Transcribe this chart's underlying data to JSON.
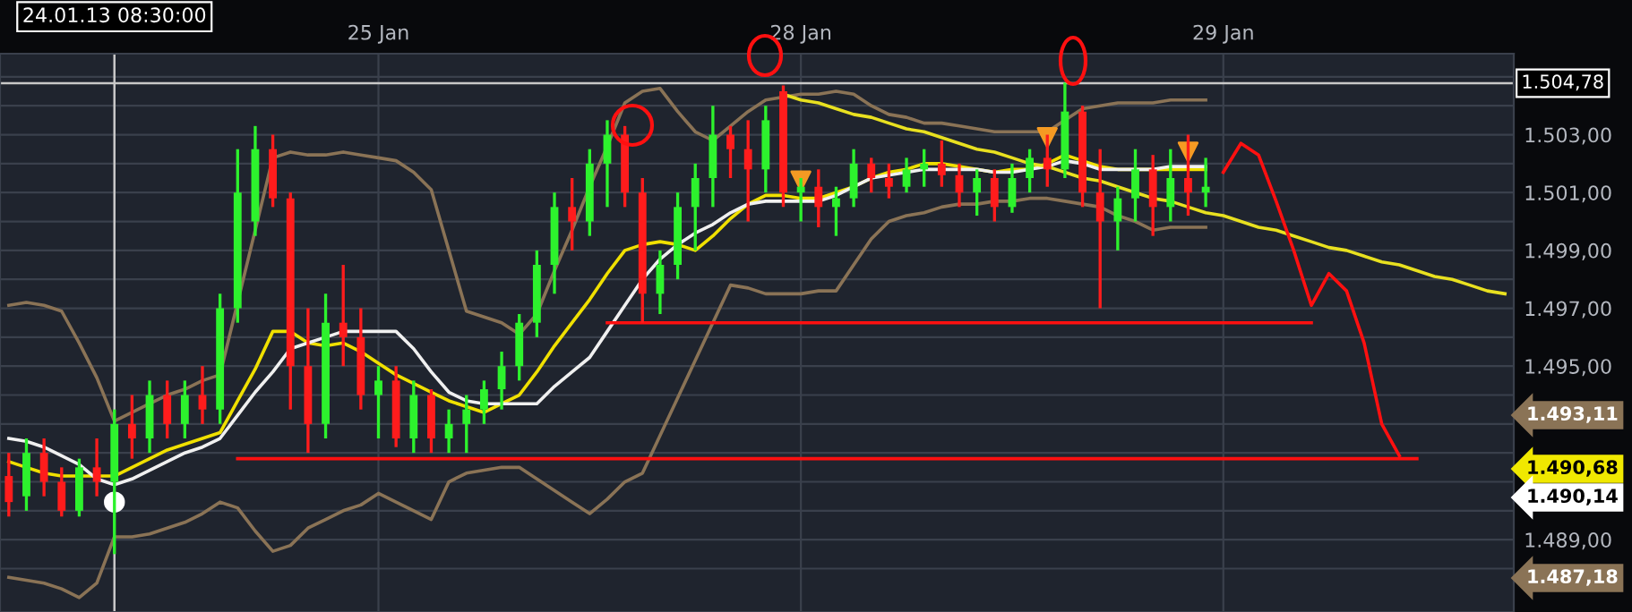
{
  "chart_data": {
    "type": "candlestick",
    "categories": [
      null,
      null,
      null,
      null,
      null,
      null,
      null,
      null,
      null,
      null,
      null,
      null,
      null,
      null,
      null,
      null,
      null,
      null,
      null,
      null,
      null,
      "25 Jan",
      null,
      null,
      null,
      null,
      null,
      null,
      null,
      null,
      null,
      null,
      null,
      null,
      null,
      null,
      null,
      null,
      null,
      null,
      null,
      null,
      null,
      null,
      null,
      "28 Jan",
      null,
      null,
      null,
      null,
      null,
      null,
      null,
      null,
      null,
      null,
      null,
      null,
      null,
      null,
      null,
      null,
      null,
      null,
      null,
      null,
      null,
      null,
      null,
      "29 Jan",
      null,
      null,
      null,
      null,
      null,
      null,
      null,
      null,
      null,
      null,
      null,
      null,
      null,
      null,
      null,
      null
    ],
    "ohlc": [
      [
        1491.2,
        1492.0,
        1489.8,
        1490.3
      ],
      [
        1490.5,
        1492.5,
        1490.0,
        1492.0
      ],
      [
        1492.0,
        1492.5,
        1490.5,
        1491.0
      ],
      [
        1491.0,
        1491.5,
        1489.8,
        1490.0
      ],
      [
        1490.0,
        1491.8,
        1489.8,
        1491.5
      ],
      [
        1491.5,
        1492.5,
        1490.5,
        1491.0
      ],
      [
        1491.0,
        1493.5,
        1488.5,
        1493.0
      ],
      [
        1493.0,
        1494.0,
        1491.8,
        1492.5
      ],
      [
        1492.5,
        1494.5,
        1492.0,
        1494.0
      ],
      [
        1494.0,
        1494.5,
        1492.5,
        1493.0
      ],
      [
        1493.0,
        1494.5,
        1492.5,
        1494.0
      ],
      [
        1494.0,
        1495.0,
        1493.0,
        1493.5
      ],
      [
        1493.5,
        1497.5,
        1493.0,
        1497.0
      ],
      [
        1497.0,
        1502.5,
        1496.5,
        1501.0
      ],
      [
        1500.0,
        1503.3,
        1499.5,
        1502.5
      ],
      [
        1502.5,
        1503.0,
        1500.5,
        1500.8
      ],
      [
        1500.8,
        1501.0,
        1493.5,
        1495.0
      ],
      [
        1495.0,
        1497.0,
        1492.0,
        1493.0
      ],
      [
        1493.0,
        1497.5,
        1492.5,
        1496.5
      ],
      [
        1496.5,
        1498.5,
        1495.0,
        1496.0
      ],
      [
        1496.0,
        1497.0,
        1493.5,
        1494.0
      ],
      [
        1494.0,
        1495.0,
        1492.5,
        1494.5
      ],
      [
        1494.5,
        1495.0,
        1492.2,
        1492.5
      ],
      [
        1492.5,
        1494.5,
        1492.0,
        1494.0
      ],
      [
        1494.0,
        1494.2,
        1492.0,
        1492.5
      ],
      [
        1492.5,
        1493.5,
        1492.0,
        1493.0
      ],
      [
        1493.0,
        1494.0,
        1492.0,
        1493.5
      ],
      [
        1493.5,
        1494.5,
        1493.0,
        1494.2
      ],
      [
        1494.2,
        1495.5,
        1493.5,
        1495.0
      ],
      [
        1495.0,
        1496.8,
        1494.5,
        1496.5
      ],
      [
        1496.5,
        1499.0,
        1496.0,
        1498.5
      ],
      [
        1498.5,
        1501.0,
        1497.5,
        1500.5
      ],
      [
        1500.5,
        1501.5,
        1499.0,
        1500.0
      ],
      [
        1500.0,
        1502.5,
        1499.5,
        1502.0
      ],
      [
        1502.0,
        1503.5,
        1500.5,
        1503.0
      ],
      [
        1503.0,
        1503.3,
        1500.5,
        1501.0
      ],
      [
        1501.0,
        1501.5,
        1496.5,
        1497.5
      ],
      [
        1497.5,
        1499.0,
        1496.8,
        1498.5
      ],
      [
        1498.5,
        1501.0,
        1498.0,
        1500.5
      ],
      [
        1500.5,
        1502.0,
        1499.0,
        1501.5
      ],
      [
        1501.5,
        1504.0,
        1500.5,
        1503.0
      ],
      [
        1503.0,
        1503.3,
        1501.5,
        1502.5
      ],
      [
        1502.5,
        1503.5,
        1500.0,
        1501.8
      ],
      [
        1501.8,
        1504.0,
        1501.0,
        1503.5
      ],
      [
        1504.5,
        1504.7,
        1500.5,
        1501.0
      ],
      [
        1501.0,
        1501.5,
        1500.0,
        1501.2
      ],
      [
        1501.2,
        1501.8,
        1499.8,
        1500.5
      ],
      [
        1500.5,
        1501.2,
        1499.5,
        1500.8
      ],
      [
        1500.8,
        1502.5,
        1500.5,
        1502.0
      ],
      [
        1502.0,
        1502.2,
        1501.0,
        1501.5
      ],
      [
        1501.5,
        1502.0,
        1500.8,
        1501.2
      ],
      [
        1501.2,
        1502.2,
        1501.0,
        1501.8
      ],
      [
        1501.8,
        1502.5,
        1501.2,
        1502.0
      ],
      [
        1502.0,
        1502.8,
        1501.2,
        1501.6
      ],
      [
        1501.6,
        1502.0,
        1500.5,
        1501.0
      ],
      [
        1501.0,
        1501.8,
        1500.2,
        1501.5
      ],
      [
        1501.5,
        1501.8,
        1500.0,
        1500.5
      ],
      [
        1500.5,
        1502.0,
        1500.3,
        1501.5
      ],
      [
        1501.5,
        1502.5,
        1501.0,
        1502.2
      ],
      [
        1502.2,
        1503.0,
        1501.2,
        1501.8
      ],
      [
        1501.8,
        1504.8,
        1501.5,
        1503.8
      ],
      [
        1503.8,
        1504.0,
        1500.5,
        1501.0
      ],
      [
        1501.0,
        1502.5,
        1497.0,
        1500.0
      ],
      [
        1500.0,
        1501.2,
        1499.0,
        1500.8
      ],
      [
        1500.8,
        1502.5,
        1500.0,
        1501.8
      ],
      [
        1501.8,
        1502.3,
        1499.5,
        1500.5
      ],
      [
        1500.5,
        1502.5,
        1500.0,
        1501.5
      ],
      [
        1501.5,
        1503.0,
        1500.2,
        1501.0
      ],
      [
        1501.0,
        1502.2,
        1500.5,
        1501.2
      ],
      null,
      null,
      null,
      null,
      null,
      null,
      null,
      null,
      null,
      null,
      null,
      null,
      null,
      null,
      null,
      null,
      null
    ],
    "series": [
      {
        "type": "line",
        "color": "#8a7356",
        "values": [
          1497.1,
          1497.2,
          1497.1,
          1496.9,
          1495.8,
          1494.6,
          1493.1,
          1493.4,
          1493.7,
          1494.0,
          1494.2,
          1494.5,
          1494.7,
          null,
          null,
          1502.2,
          1502.4,
          1502.3,
          1502.3,
          1502.4,
          1502.3,
          1502.2,
          1502.1,
          1501.7,
          1501.1,
          1499.0,
          1496.9,
          1496.7,
          1496.5,
          1496.1,
          1496.8,
          1498.3,
          1499.7,
          1501.2,
          1502.6,
          1504.1,
          1504.5,
          1504.6,
          1503.8,
          1503.1,
          1502.8,
          1503.3,
          1503.8,
          1504.2,
          1504.3,
          1504.4,
          1504.4,
          1504.5,
          1504.4,
          1504.0,
          1503.7,
          1503.6,
          1503.4,
          1503.4,
          1503.3,
          1503.2,
          1503.1,
          1503.1,
          1503.1,
          1503.1,
          1503.5,
          1503.9,
          1504.0,
          1504.1,
          1504.1,
          1504.1,
          1504.2,
          1504.2,
          1504.2,
          null,
          null,
          null,
          null,
          null,
          null,
          null,
          null,
          null,
          null,
          null,
          null,
          null,
          null,
          null,
          null,
          null
        ]
      },
      {
        "type": "line",
        "color": "#8a7356",
        "values": [
          1487.7,
          1487.6,
          1487.5,
          1487.3,
          1487.0,
          1487.5,
          1489.1,
          1489.1,
          1489.2,
          1489.4,
          1489.6,
          1489.9,
          1490.3,
          1490.1,
          1489.3,
          1488.6,
          1488.8,
          1489.4,
          1489.7,
          1490.0,
          1490.2,
          1490.6,
          1490.3,
          1490.0,
          1489.7,
          1491.0,
          1491.3,
          1491.4,
          1491.5,
          1491.5,
          1491.1,
          1490.7,
          1490.3,
          1489.9,
          1490.4,
          1491.0,
          1491.3,
          1492.6,
          1493.9,
          1495.2,
          1496.5,
          1497.8,
          1497.7,
          1497.5,
          1497.5,
          1497.5,
          1497.6,
          1497.6,
          1498.5,
          1499.4,
          1500.0,
          1500.2,
          1500.3,
          1500.5,
          1500.6,
          1500.6,
          1500.7,
          1500.7,
          1500.8,
          1500.8,
          1500.7,
          1500.6,
          1500.5,
          1500.2,
          1500.0,
          1499.7,
          1499.8,
          1499.8,
          1499.8,
          null,
          null,
          null,
          null,
          null,
          null,
          null,
          null,
          null,
          null,
          null,
          null,
          null,
          null,
          null,
          null,
          null
        ]
      },
      {
        "type": "line",
        "color": "#f0e000",
        "values": [
          1491.7,
          1491.5,
          1491.3,
          1491.2,
          1491.2,
          1491.2,
          1491.2,
          1491.5,
          1491.8,
          1492.1,
          1492.3,
          1492.5,
          1492.7,
          1493.8,
          1494.9,
          1496.2,
          1496.2,
          1495.8,
          1495.7,
          1495.8,
          1495.5,
          1495.1,
          1494.7,
          1494.4,
          1494.1,
          1493.8,
          1493.6,
          1493.4,
          1493.7,
          1494.0,
          1494.8,
          1495.7,
          1496.5,
          1497.3,
          1498.2,
          1499.0,
          1499.2,
          1499.3,
          1499.2,
          1499.0,
          1499.5,
          1500.1,
          1500.6,
          1500.9,
          1500.9,
          1500.8,
          1500.8,
          1501.0,
          1501.2,
          1501.5,
          1501.7,
          1501.8,
          1502.0,
          1502.0,
          1501.9,
          1501.8,
          1501.7,
          1501.8,
          1501.8,
          1502.0,
          1502.3,
          1502.1,
          1501.9,
          1501.8,
          null,
          1501.8,
          1501.8,
          1501.8,
          1501.8,
          null,
          null,
          null,
          null,
          null,
          null,
          null,
          null,
          null,
          null,
          null,
          null,
          null,
          null,
          null,
          null,
          null
        ]
      },
      {
        "type": "line",
        "color": "#f0f0f0",
        "values": [
          1492.5,
          1492.4,
          1492.2,
          1491.9,
          1491.6,
          1491.1,
          1490.9,
          1491.1,
          1491.4,
          1491.7,
          1492.0,
          1492.2,
          1492.5,
          1493.3,
          1494.1,
          1494.8,
          1495.6,
          1495.8,
          1496.0,
          1496.2,
          1496.2,
          1496.2,
          1496.2,
          1495.6,
          1494.8,
          1494.1,
          1493.8,
          1493.7,
          1493.7,
          1493.7,
          1493.7,
          1494.3,
          1494.8,
          1495.3,
          1496.2,
          1497.1,
          1498.0,
          1498.7,
          1499.2,
          1499.6,
          1499.9,
          1500.3,
          1500.6,
          1500.7,
          1500.7,
          1500.7,
          1500.7,
          1500.9,
          1501.2,
          1501.5,
          1501.6,
          1501.7,
          1501.8,
          1501.8,
          1501.8,
          1501.8,
          1501.7,
          1501.7,
          1501.8,
          1501.9,
          1502.1,
          1502.0,
          1501.8,
          1501.8,
          1501.8,
          1501.8,
          1501.9,
          1501.9,
          1501.9,
          null,
          null,
          null,
          null,
          null,
          null,
          null,
          null,
          null,
          null,
          null,
          null,
          null,
          null,
          null,
          null,
          null
        ]
      },
      {
        "type": "line",
        "color": "#e8e020",
        "values": [
          null,
          null,
          null,
          null,
          null,
          null,
          null,
          null,
          null,
          null,
          null,
          null,
          null,
          null,
          null,
          null,
          null,
          null,
          null,
          null,
          null,
          null,
          null,
          null,
          null,
          null,
          null,
          null,
          null,
          null,
          null,
          null,
          null,
          null,
          null,
          null,
          null,
          null,
          null,
          null,
          null,
          null,
          null,
          null,
          1504.4,
          1504.2,
          1504.1,
          1503.9,
          1503.7,
          1503.6,
          1503.4,
          1503.2,
          1503.1,
          1502.9,
          1502.7,
          1502.5,
          1502.4,
          1502.2,
          1502.0,
          1501.9,
          1501.7,
          1501.5,
          1501.4,
          1501.2,
          1501.0,
          1500.8,
          1500.7,
          1500.5,
          1500.3,
          1500.2,
          1500.0,
          1499.8,
          1499.7,
          1499.5,
          1499.3,
          1499.1,
          1499.0,
          1498.8,
          1498.6,
          1498.5,
          1498.3,
          1498.1,
          1498.0,
          1497.8,
          1497.6,
          1497.5
        ]
      },
      {
        "type": "line",
        "color": "#ff1010",
        "values": [
          null,
          null,
          null,
          null,
          null,
          null,
          null,
          null,
          null,
          null,
          null,
          null,
          null,
          null,
          null,
          null,
          null,
          null,
          null,
          null,
          null,
          null,
          null,
          null,
          null,
          null,
          null,
          null,
          null,
          null,
          null,
          null,
          null,
          null,
          1496.5,
          1496.5,
          1496.5,
          1496.5,
          1496.5,
          1496.5,
          1496.5,
          1496.5,
          1496.5,
          1496.5,
          1496.5,
          1496.5,
          1496.5,
          1496.5,
          1496.5,
          1496.5,
          1496.5,
          1496.5,
          1496.5,
          1496.5,
          1496.5,
          1496.5,
          1496.5,
          1496.5,
          1496.5,
          1496.5,
          1496.5,
          1496.5,
          1496.5,
          1496.5,
          1496.5,
          1496.5,
          1496.5,
          1496.5,
          1496.5,
          1496.5,
          1496.5,
          1496.5,
          1496.5,
          1496.5,
          1496.5,
          null,
          null,
          null,
          null,
          null,
          null,
          null,
          null,
          null,
          null,
          null
        ]
      },
      {
        "type": "line",
        "color": "#ff1010",
        "values": [
          null,
          null,
          null,
          null,
          null,
          null,
          null,
          null,
          null,
          null,
          null,
          null,
          null,
          1491.8,
          1491.8,
          1491.8,
          1491.8,
          1491.8,
          1491.8,
          1491.8,
          1491.8,
          1491.8,
          1491.8,
          1491.8,
          1491.8,
          1491.8,
          1491.8,
          1491.8,
          1491.8,
          1491.8,
          1491.8,
          1491.8,
          1491.8,
          1491.8,
          1491.8,
          1491.8,
          1491.8,
          1491.8,
          1491.8,
          1491.8,
          1491.8,
          1491.8,
          1491.8,
          1491.8,
          1491.8,
          1491.8,
          1491.8,
          1491.8,
          1491.8,
          1491.8,
          1491.8,
          1491.8,
          1491.8,
          1491.8,
          1491.8,
          1491.8,
          1491.8,
          1491.8,
          1491.8,
          1491.8,
          1491.8,
          1491.8,
          1491.8,
          1491.8,
          1491.8,
          1491.8,
          1491.8,
          1491.8,
          1491.8,
          1491.8,
          1491.8,
          1491.8,
          1491.8,
          1491.8,
          1491.8,
          1491.8,
          1491.8,
          1491.8,
          1491.8,
          1491.8,
          1491.8,
          null,
          null,
          null,
          null,
          null
        ]
      },
      {
        "type": "line",
        "color": "#ff1010",
        "values": [
          null,
          null,
          null,
          null,
          null,
          null,
          null,
          null,
          null,
          null,
          null,
          null,
          null,
          null,
          null,
          null,
          null,
          null,
          null,
          null,
          null,
          null,
          null,
          null,
          null,
          null,
          null,
          null,
          null,
          null,
          null,
          null,
          null,
          null,
          null,
          null,
          null,
          null,
          null,
          null,
          null,
          null,
          null,
          null,
          null,
          null,
          null,
          null,
          null,
          null,
          null,
          null,
          null,
          null,
          null,
          null,
          null,
          null,
          null,
          null,
          null,
          null,
          null,
          null,
          null,
          null,
          null,
          null,
          null,
          1501.7,
          1502.7,
          1502.3,
          1500.7,
          1499.0,
          1497.1,
          1498.2,
          1497.6,
          1495.8,
          1493.0,
          1491.9,
          null,
          null,
          null,
          null,
          null,
          null
        ]
      },
      {
        "type": "scatter",
        "marker": "triangle",
        "color": "#f59a23",
        "values": [
          null,
          null,
          null,
          null,
          null,
          null,
          null,
          null,
          null,
          null,
          null,
          null,
          null,
          null,
          null,
          null,
          null,
          null,
          null,
          null,
          null,
          null,
          null,
          null,
          null,
          null,
          null,
          null,
          null,
          null,
          null,
          null,
          null,
          null,
          null,
          null,
          null,
          null,
          null,
          null,
          null,
          null,
          null,
          null,
          null,
          1501.4,
          null,
          null,
          null,
          null,
          null,
          null,
          null,
          null,
          null,
          null,
          null,
          null,
          null,
          1502.9,
          null,
          null,
          null,
          null,
          null,
          null,
          null,
          1502.4,
          null,
          null,
          null,
          null,
          null,
          null,
          null,
          null,
          null,
          null,
          null,
          null,
          null,
          null,
          null,
          null,
          null,
          null
        ]
      },
      {
        "type": "scatter",
        "marker": "circle",
        "color": "#ffffff",
        "values": [
          null,
          null,
          null,
          null,
          null,
          null,
          1490.3,
          null,
          null,
          null,
          null,
          null,
          null,
          null,
          null,
          null,
          null,
          null,
          null,
          null,
          null,
          null,
          null,
          null,
          null,
          null,
          null,
          null,
          null,
          null,
          null,
          null,
          null,
          null,
          null,
          null,
          null,
          null,
          null,
          null,
          null,
          null,
          null,
          null,
          null,
          null,
          null,
          null,
          null,
          null,
          null,
          null,
          null,
          null,
          null,
          null,
          null,
          null,
          null,
          null,
          null,
          null,
          null,
          null,
          null,
          null,
          null,
          null,
          null,
          null,
          null,
          null,
          null,
          null,
          null,
          null,
          null,
          null,
          null,
          null,
          null,
          null,
          null,
          null,
          null,
          null
        ]
      }
    ],
    "ylim": [
      1486.5,
      1505.8
    ],
    "yticks": [
      {
        "value": 1488,
        "label": null
      },
      {
        "value": 1489,
        "label": "1.489,00"
      },
      {
        "value": 1490,
        "label": null
      },
      {
        "value": 1491,
        "label": null
      },
      {
        "value": 1492,
        "label": null
      },
      {
        "value": 1493,
        "label": null
      },
      {
        "value": 1494,
        "label": null
      },
      {
        "value": 1495,
        "label": "1.495,00"
      },
      {
        "value": 1496,
        "label": null
      },
      {
        "value": 1497,
        "label": "1.497,00"
      },
      {
        "value": 1498,
        "label": null
      },
      {
        "value": 1499,
        "label": "1.499,00"
      },
      {
        "value": 1500,
        "label": null
      },
      {
        "value": 1501,
        "label": "1.501,00"
      },
      {
        "value": 1502,
        "label": null
      },
      {
        "value": 1503,
        "label": "1.503,00"
      },
      {
        "value": 1504,
        "label": null
      },
      {
        "value": 1505,
        "label": null
      }
    ],
    "ref_lines": [
      {
        "axis": "y",
        "value": 1504.78,
        "label": "1.504,78",
        "color": "#c8c8c8"
      }
    ],
    "annotations": [
      "24.01.13 08:30:00",
      "1.493,11",
      "1.490,68",
      "1.490,14",
      "1.487,18"
    ],
    "grid": true
  }
}
